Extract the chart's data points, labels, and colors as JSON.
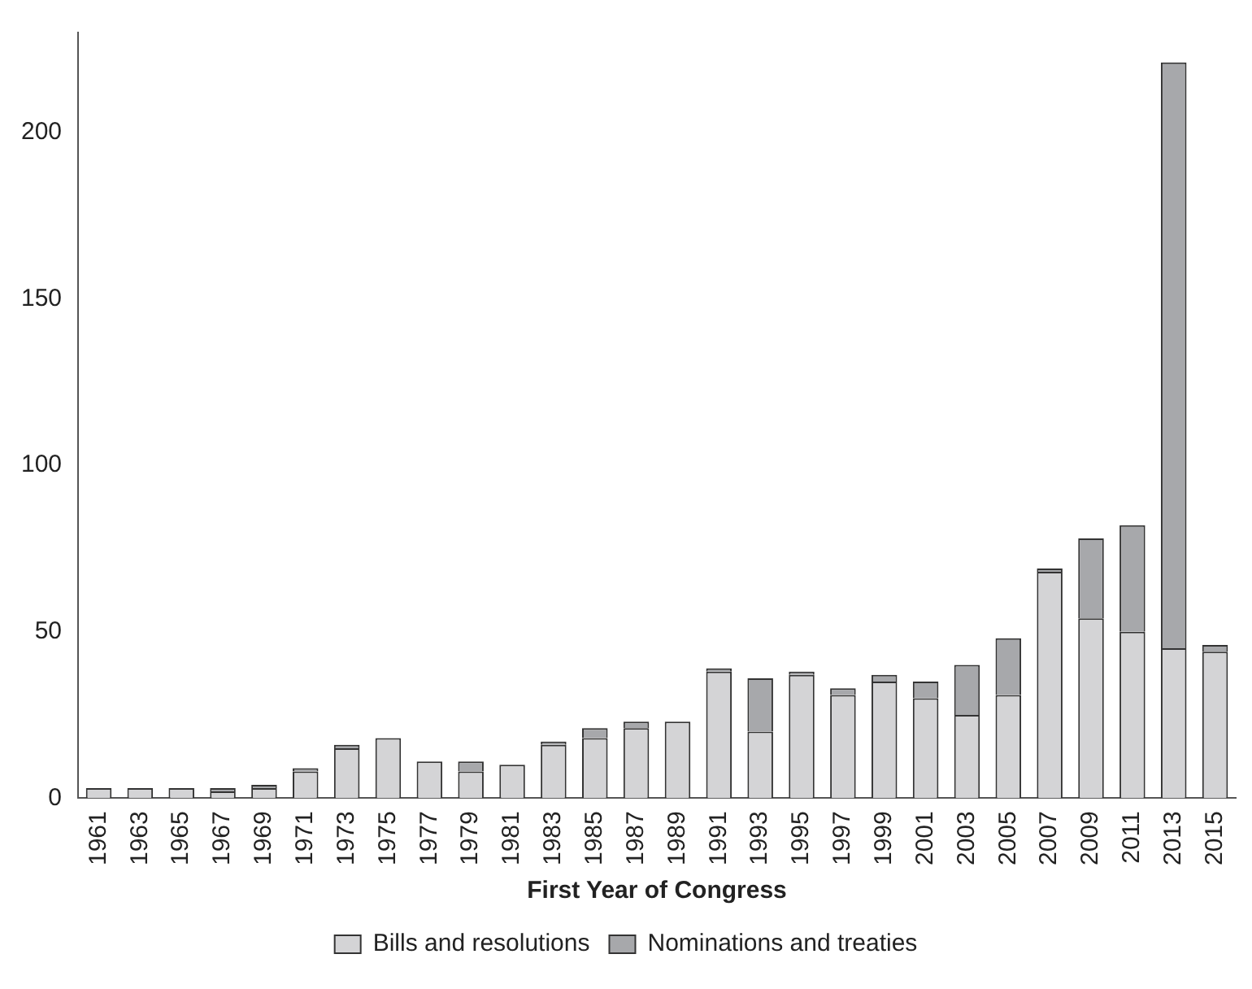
{
  "chart_data": {
    "type": "bar",
    "stacked": true,
    "xlabel": "First Year of Congress",
    "categories": [
      "1961",
      "1963",
      "1965",
      "1967",
      "1969",
      "1971",
      "1973",
      "1975",
      "1977",
      "1979",
      "1981",
      "1983",
      "1985",
      "1987",
      "1989",
      "1991",
      "1993",
      "1995",
      "1997",
      "1999",
      "2001",
      "2003",
      "2005",
      "2007",
      "2009",
      "2011",
      "2013",
      "2015"
    ],
    "series": [
      {
        "name": "Bills and resolutions",
        "color": "#d4d4d6",
        "values": [
          3,
          3,
          3,
          2,
          3,
          8,
          15,
          18,
          11,
          8,
          10,
          16,
          18,
          21,
          23,
          38,
          20,
          37,
          31,
          35,
          30,
          25,
          31,
          68,
          54,
          50,
          45,
          44
        ]
      },
      {
        "name": "Nominations and treaties",
        "color": "#a7a8ab",
        "values": [
          0,
          0,
          0,
          1,
          1,
          1,
          1,
          0,
          0,
          3,
          0,
          1,
          3,
          2,
          0,
          1,
          16,
          1,
          2,
          2,
          5,
          15,
          17,
          1,
          24,
          32,
          176,
          2
        ]
      }
    ],
    "ylim": [
      0,
      230
    ],
    "yticks": [
      0,
      50,
      100,
      150,
      200
    ],
    "grid": false,
    "legend": "bottom"
  }
}
